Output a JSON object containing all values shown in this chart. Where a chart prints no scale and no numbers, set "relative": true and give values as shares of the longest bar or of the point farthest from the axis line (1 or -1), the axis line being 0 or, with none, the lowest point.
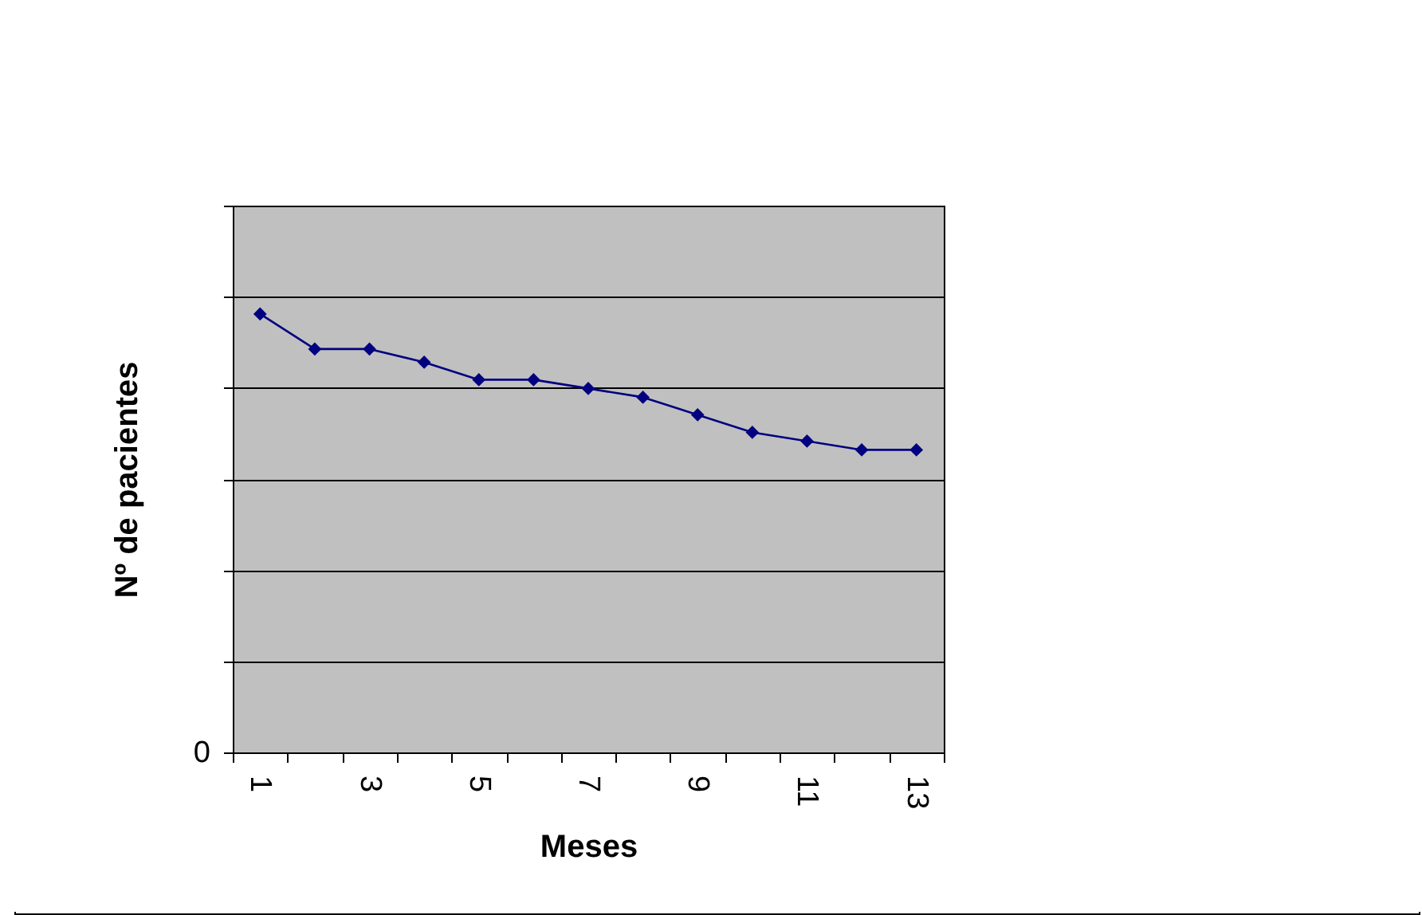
{
  "chart_data": {
    "type": "line",
    "xlabel": "Meses",
    "ylabel": "Nº de pacientes",
    "categories": [
      "1",
      null,
      "3",
      null,
      "5",
      null,
      "7",
      null,
      "9",
      null,
      "11",
      null,
      "13"
    ],
    "series": [
      {
        "color": "#000080",
        "values": [
          1,
          0.92,
          0.92,
          0.89,
          0.85,
          0.85,
          0.83,
          0.81,
          0.77,
          0.73,
          0.71,
          0.69,
          0.69
        ]
      }
    ],
    "relative": true,
    "annotations": [
      "0"
    ],
    "grid": "y",
    "legend": false,
    "marker": "diamond",
    "line_style": "solid"
  }
}
